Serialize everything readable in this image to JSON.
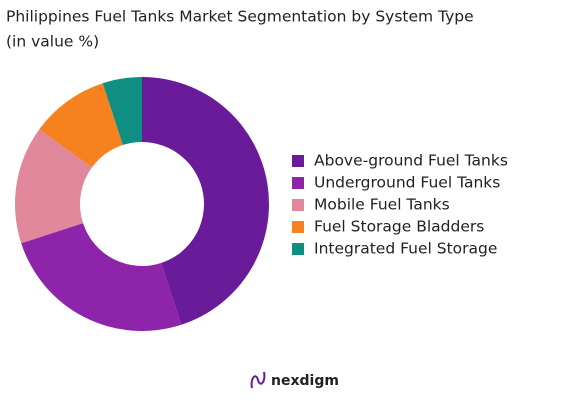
{
  "chart_data": {
    "type": "donut",
    "title": "Philippines Fuel Tanks Market Segmentation by System Type",
    "subtitle": "(in value %)",
    "categories": [
      "Above-ground Fuel Tanks",
      "Underground Fuel Tanks",
      "Mobile Fuel Tanks",
      "Fuel Storage Bladders",
      "Integrated Fuel Storage"
    ],
    "values": [
      45,
      25,
      15,
      10,
      5
    ],
    "colors": [
      "#6a1b9a",
      "#8e24aa",
      "#e0879c",
      "#f5821f",
      "#0f8f84"
    ],
    "legend": "right"
  },
  "brand": "nexdigm"
}
